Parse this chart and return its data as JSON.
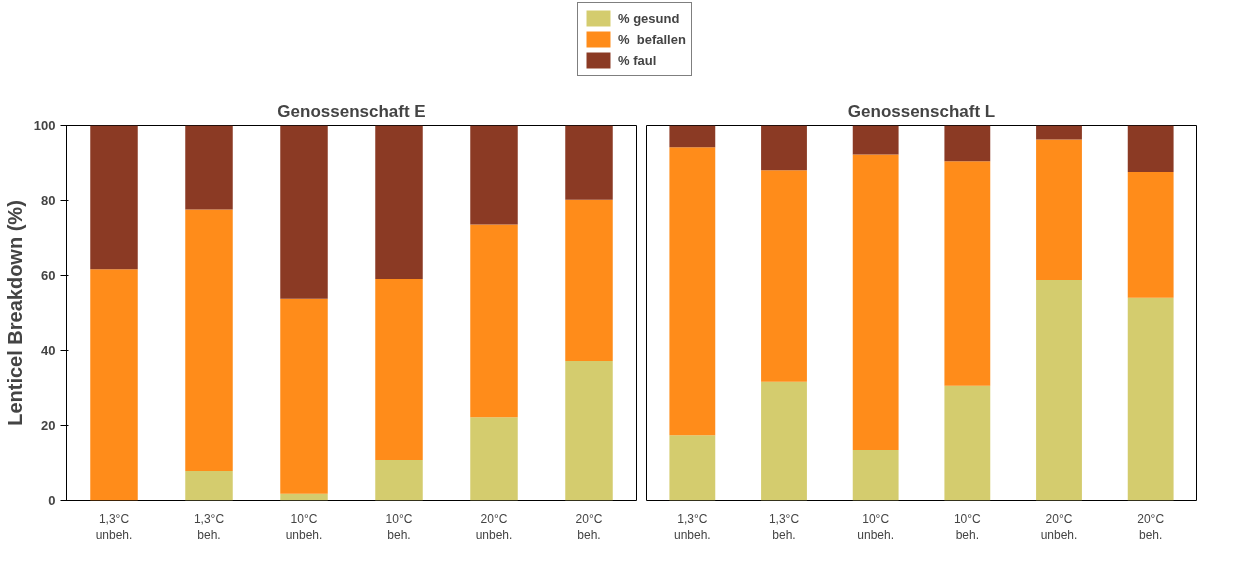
{
  "chart_data": [
    {
      "type": "bar",
      "title": "Genossenschaft E",
      "ylabel": "Lenticel Breakdown (%)",
      "categories": [
        "1,3°C\nunbeh.",
        "1,3°C\nbeh.",
        "10°C\nunbeh.",
        "10°C\nbeh.",
        "20°C\nunbeh.",
        "20°C\nbeh."
      ],
      "stacked": true,
      "ylim": [
        0,
        100
      ],
      "yticks": [
        0,
        20,
        40,
        60,
        80,
        100
      ],
      "legend": "top right",
      "series": [
        {
          "name": "% gesund",
          "color": "#d4cc6e",
          "values": [
            0,
            7.9,
            1.8,
            10.8,
            22.2,
            37.2
          ]
        },
        {
          "name": "%  befallen",
          "color": "#ff8c1a",
          "values": [
            61.7,
            69.7,
            52.0,
            48.3,
            51.4,
            43.0
          ]
        },
        {
          "name": "% faul",
          "color": "#8b3a24",
          "values": [
            38.3,
            22.4,
            46.2,
            40.9,
            26.4,
            19.8
          ]
        }
      ]
    },
    {
      "type": "bar",
      "title": "Genossenschaft L",
      "categories": [
        "1,3°C\nunbeh.",
        "1,3°C\nbeh.",
        "10°C\nunbeh.",
        "10°C\nbeh.",
        "20°C\nunbeh.",
        "20°C\nbeh."
      ],
      "stacked": true,
      "ylim": [
        0,
        100
      ],
      "tick_labels": "x",
      "series": [
        {
          "color": "#d4cc6e",
          "values": [
            17.4,
            31.7,
            13.5,
            30.6,
            58.8,
            54.1
          ]
        },
        {
          "color": "#ff8c1a",
          "values": [
            76.8,
            56.4,
            78.8,
            59.9,
            37.5,
            33.5
          ]
        },
        {
          "color": "#8b3a24",
          "values": [
            5.8,
            11.9,
            7.7,
            9.5,
            3.7,
            12.4
          ]
        }
      ]
    }
  ]
}
